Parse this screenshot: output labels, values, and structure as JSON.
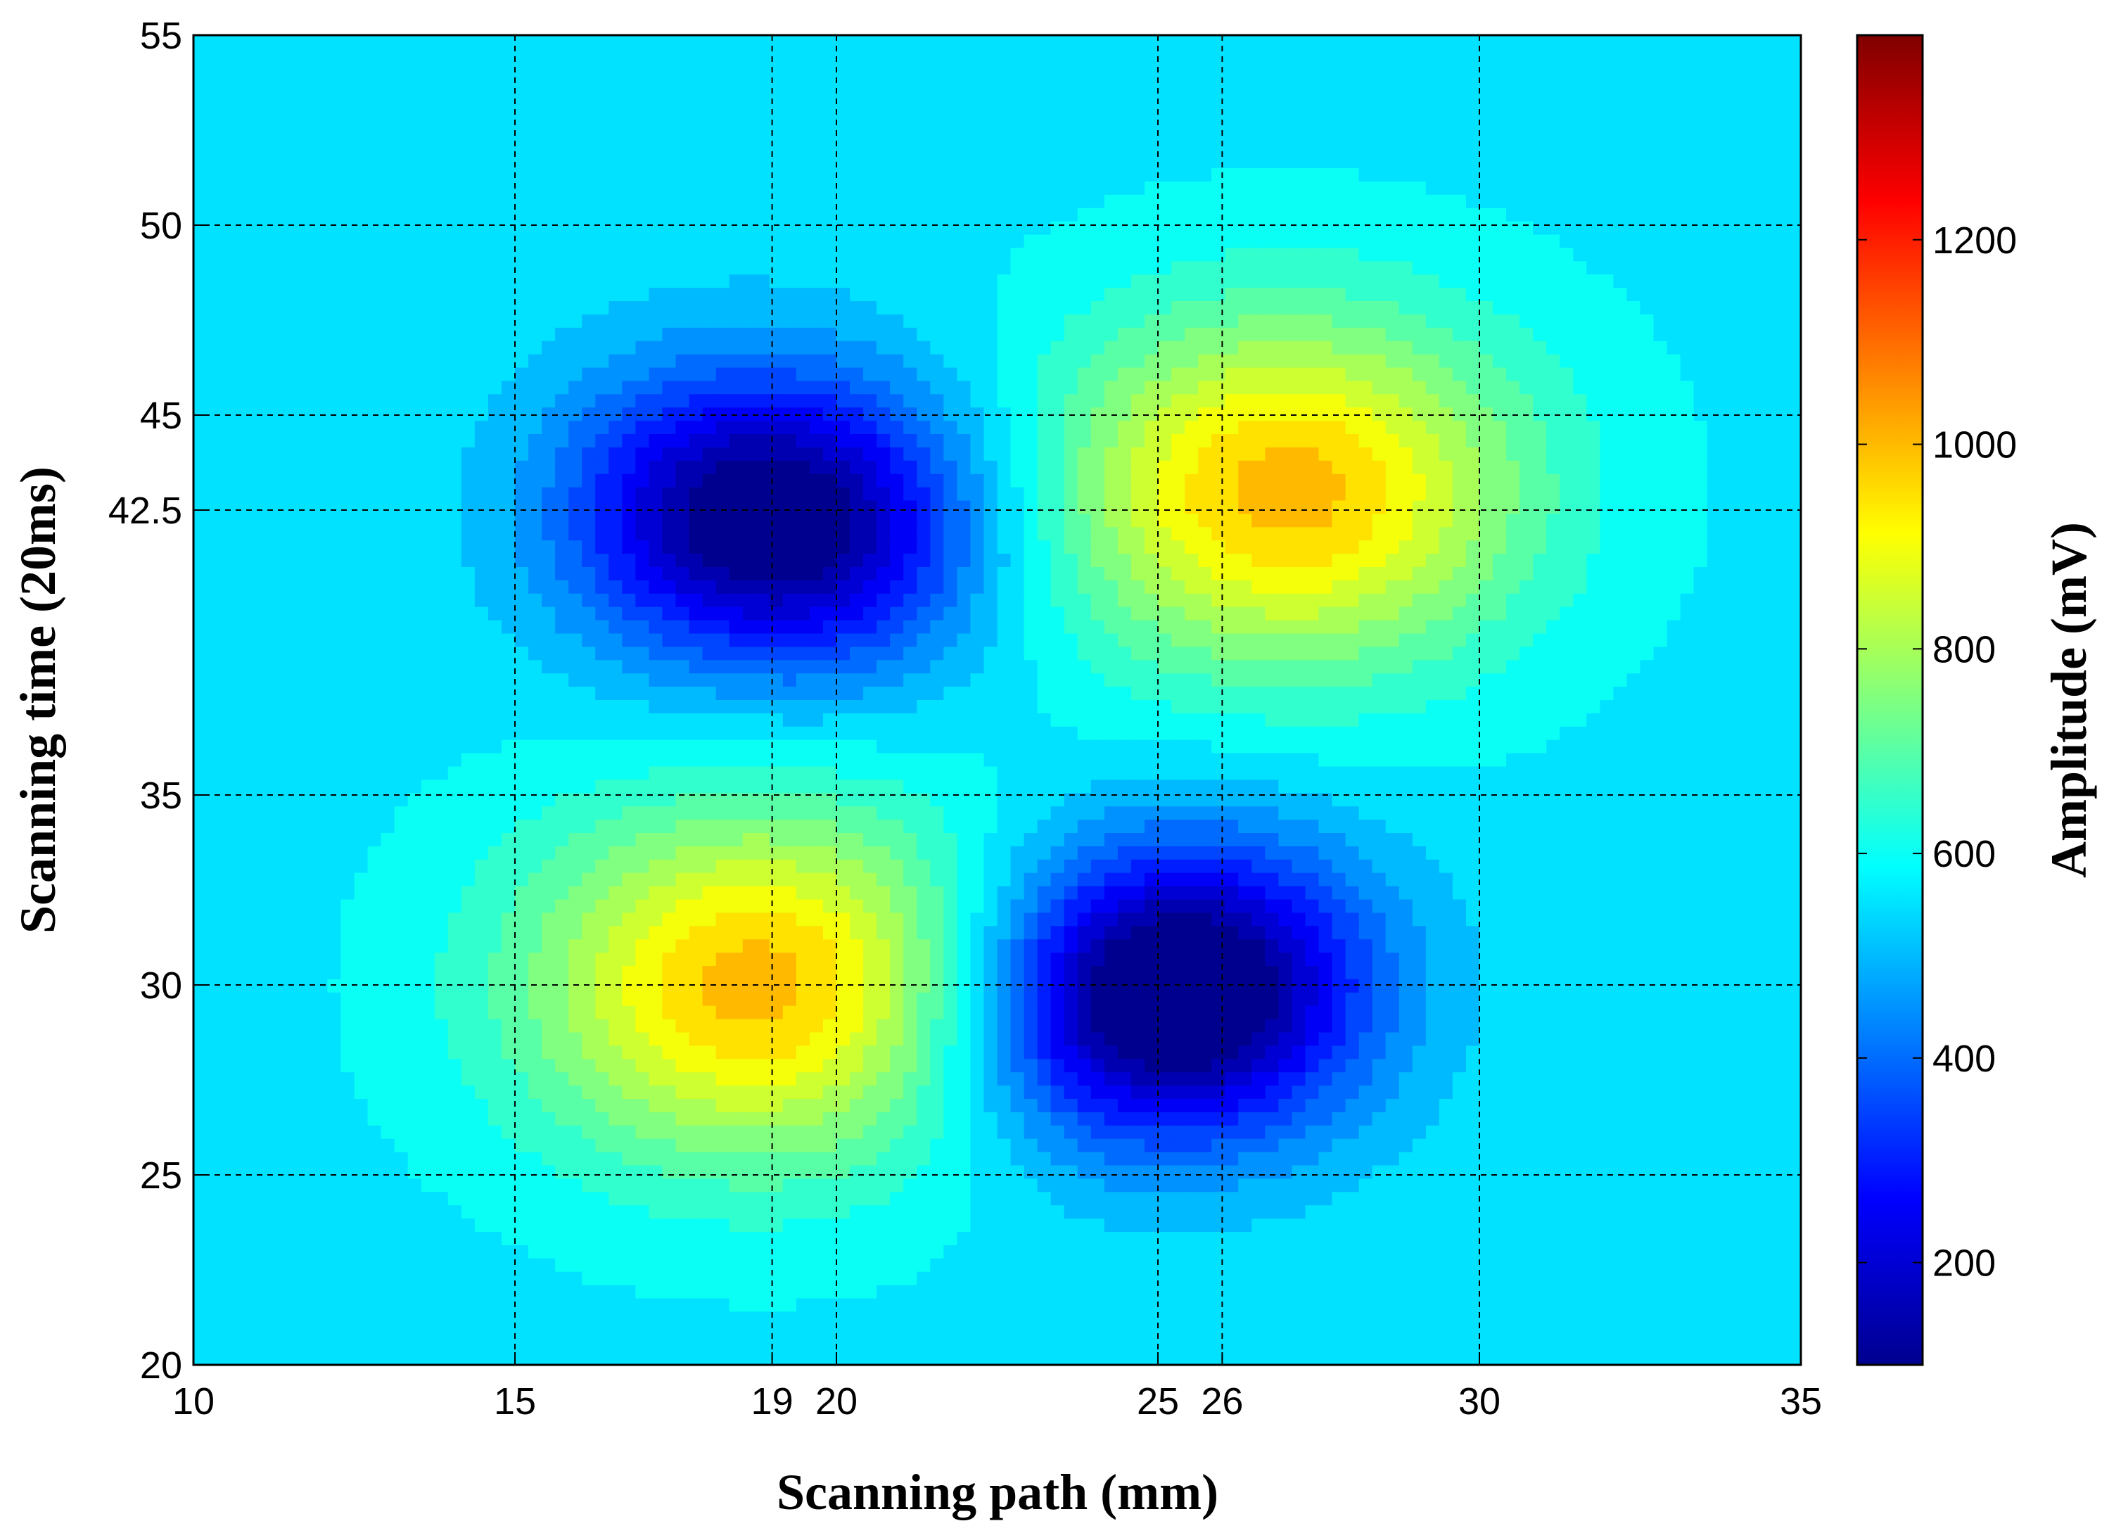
{
  "chart_data": {
    "type": "heatmap",
    "subtype": "filled-contour",
    "xlabel": "Scanning path (mm)",
    "ylabel": "Scanning time (20ms)",
    "colorbar_label": "Amplitude (mV)",
    "colormap": "jet",
    "xlim": [
      10,
      35
    ],
    "ylim": [
      20,
      55
    ],
    "clim": [
      100,
      1400
    ],
    "x_ticks": [
      10,
      15,
      19,
      20,
      25,
      26,
      30,
      35
    ],
    "y_ticks": [
      20,
      25,
      30,
      35,
      42.5,
      45,
      50,
      55
    ],
    "colorbar_ticks": [
      200,
      400,
      600,
      800,
      1000,
      1200
    ],
    "grid": "dashed",
    "background_amplitude": 560,
    "features": [
      {
        "kind": "peak",
        "x": 18.8,
        "y": 30,
        "amplitude": 1000
      },
      {
        "kind": "peak",
        "x": 27,
        "y": 43,
        "amplitude": 1000
      },
      {
        "kind": "trough",
        "x": 18,
        "y": 42.5,
        "amplitude": 250
      },
      {
        "kind": "trough",
        "x": 20,
        "y": 42,
        "amplitude": 250
      },
      {
        "kind": "trough",
        "x": 26,
        "y": 30,
        "amplitude": 200
      },
      {
        "kind": "trough",
        "x": 24.3,
        "y": 29.5,
        "amplitude": 250
      }
    ],
    "colormap_stops": [
      {
        "pos": 0.0,
        "color": "#00008f"
      },
      {
        "pos": 0.125,
        "color": "#0000ff"
      },
      {
        "pos": 0.375,
        "color": "#00ffff"
      },
      {
        "pos": 0.625,
        "color": "#ffff00"
      },
      {
        "pos": 0.875,
        "color": "#ff0000"
      },
      {
        "pos": 1.0,
        "color": "#800000"
      }
    ]
  }
}
